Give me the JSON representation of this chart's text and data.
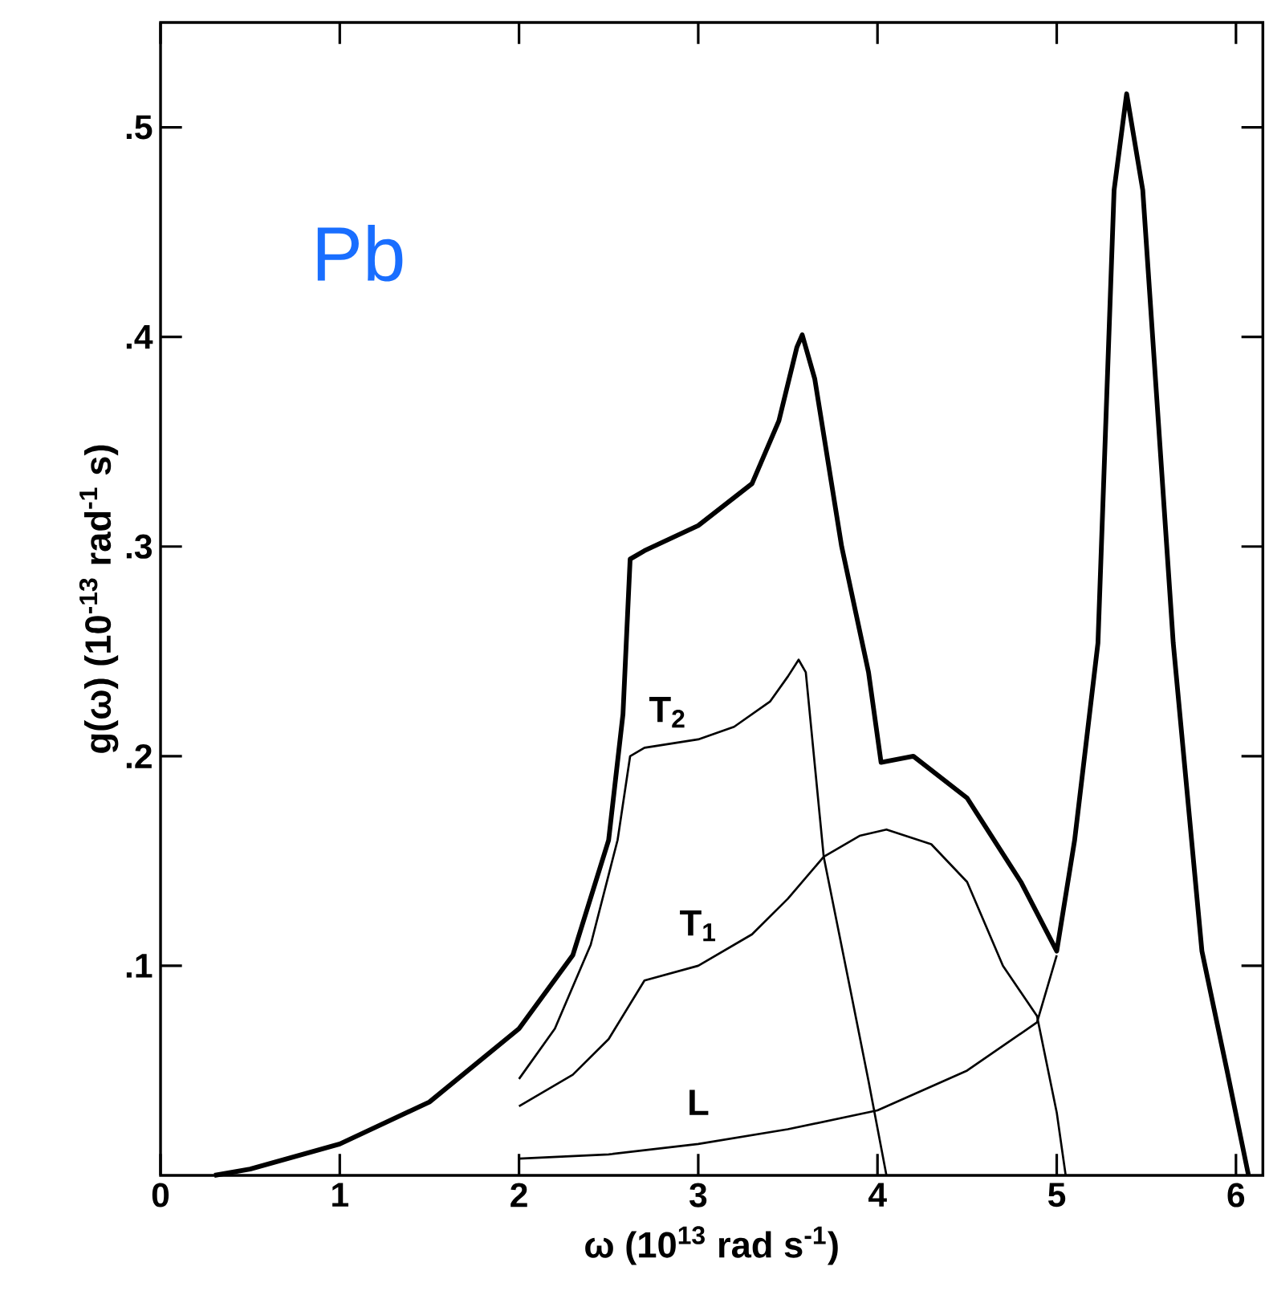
{
  "chart_data": {
    "type": "line",
    "xlabel": "ω (10$^{13}$ rad s$^{-1}$)",
    "ylabel": "g(ω)  (10$^{-13}$ rad$^{-1}$ s)",
    "annotations": [
      "Pb"
    ],
    "xlim": [
      0,
      6.15
    ],
    "ylim": [
      0,
      0.55
    ],
    "xticks": [
      0,
      1,
      2,
      3,
      4,
      5,
      6
    ],
    "yticks": [
      {
        "value": 0.1,
        "label": ".1"
      },
      {
        "value": 0.2,
        "label": ".2"
      },
      {
        "value": 0.3,
        "label": ".3"
      },
      {
        "value": 0.4,
        "label": ".4"
      },
      {
        "value": 0.5,
        "label": ".5"
      }
    ],
    "marker": "none",
    "line_style": "solid",
    "series": [
      {
        "color": "#000000",
        "x": [
          0.3,
          0.5,
          1,
          1.5,
          2,
          2.3,
          2.5,
          2.58,
          2.62,
          2.7,
          3.0,
          3.3,
          3.45,
          3.55,
          3.58,
          3.65,
          3.8,
          3.95,
          4.02,
          4.2,
          4.5,
          4.8,
          5.0,
          5.1,
          5.23,
          5.32,
          5.39,
          5.48,
          5.65,
          5.81,
          5.95,
          6.07
        ],
        "values": [
          0,
          0.003,
          0.015,
          0.035,
          0.07,
          0.105,
          0.16,
          0.22,
          0.294,
          0.298,
          0.31,
          0.33,
          0.36,
          0.395,
          0.401,
          0.38,
          0.3,
          0.24,
          0.197,
          0.2,
          0.18,
          0.14,
          0.107,
          0.16,
          0.254,
          0.47,
          0.516,
          0.47,
          0.254,
          0.107,
          0.05,
          0
        ]
      },
      {
        "name": "T$_{2}$",
        "color": "#000000",
        "x": [
          2,
          2.2,
          2.4,
          2.55,
          2.62,
          2.7,
          3.0,
          3.2,
          3.4,
          3.5,
          3.56,
          3.6,
          3.7,
          3.85,
          3.95,
          4.05
        ],
        "values": [
          0.046,
          0.07,
          0.11,
          0.16,
          0.2,
          0.204,
          0.208,
          0.214,
          0.226,
          0.238,
          0.246,
          0.24,
          0.152,
          0.088,
          0.045,
          0
        ]
      },
      {
        "name": "T$_{1}$",
        "color": "#000000",
        "x": [
          2,
          2.3,
          2.5,
          2.7,
          3.0,
          3.3,
          3.5,
          3.7,
          3.9,
          4.05,
          4.3,
          4.5,
          4.7,
          4.89,
          5.0,
          5.05
        ],
        "values": [
          0.033,
          0.048,
          0.065,
          0.093,
          0.1,
          0.115,
          0.132,
          0.152,
          0.162,
          0.165,
          0.158,
          0.14,
          0.1,
          0.076,
          0.03,
          0
        ]
      },
      {
        "name": "L",
        "color": "#000000",
        "x": [
          2,
          2.5,
          3,
          3.5,
          4.0,
          4.5,
          4.89,
          5.0
        ],
        "values": [
          0.008,
          0.01,
          0.015,
          0.022,
          0.031,
          0.05,
          0.073,
          0.105
        ]
      }
    ]
  }
}
